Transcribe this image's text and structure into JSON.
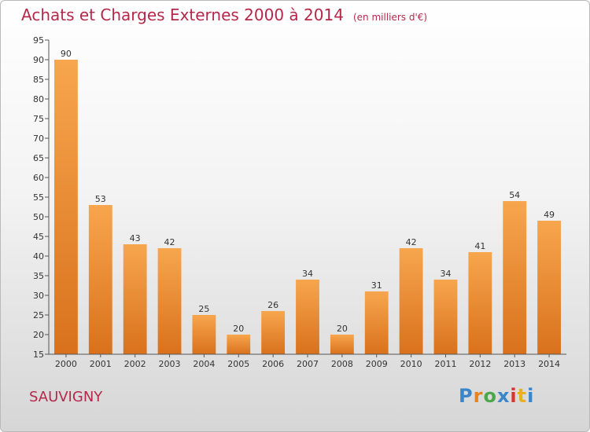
{
  "header": {
    "title": "Achats et Charges Externes 2000 à 2014",
    "subtitle": "(en milliers d'€)"
  },
  "footer": {
    "town": "SAUVIGNY",
    "logo": "Proxiti"
  },
  "colors": {
    "title": "#b5284a",
    "bar_light": "#f7a64e",
    "bar_dark": "#d9711c",
    "logo_letters": [
      "#3a86c8",
      "#e8821e",
      "#4aa84a",
      "#3a86c8",
      "#d8342c",
      "#e8b21e",
      "#3a86c8"
    ]
  },
  "chart_data": {
    "type": "bar",
    "categories": [
      "2000",
      "2001",
      "2002",
      "2003",
      "2004",
      "2005",
      "2006",
      "2007",
      "2008",
      "2009",
      "2010",
      "2011",
      "2012",
      "2013",
      "2014"
    ],
    "values": [
      90,
      53,
      43,
      42,
      25,
      20,
      26,
      34,
      20,
      31,
      42,
      34,
      41,
      54,
      49
    ],
    "ylim": [
      15,
      95
    ],
    "yticks": [
      15,
      20,
      25,
      30,
      35,
      40,
      45,
      50,
      55,
      60,
      65,
      70,
      75,
      80,
      85,
      90,
      95
    ],
    "grid": false,
    "data_labels": true
  }
}
